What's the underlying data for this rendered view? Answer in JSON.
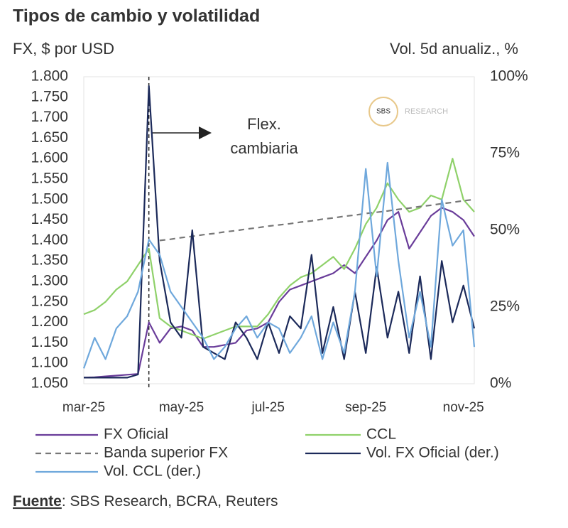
{
  "chart_data": {
    "type": "line",
    "title": "Tipos de cambio y volatilidad",
    "y_label": "FX, $ por USD",
    "y2_label": "Vol. 5d anualiz., %",
    "categories": [
      "mar-25",
      null,
      null,
      null,
      null,
      null,
      null,
      null,
      null,
      "may-25",
      null,
      null,
      null,
      null,
      null,
      null,
      null,
      "jul-25",
      null,
      null,
      null,
      null,
      null,
      null,
      null,
      null,
      "sep-25",
      null,
      null,
      null,
      null,
      null,
      null,
      null,
      null,
      "nov-25",
      null
    ],
    "ylim": [
      1050,
      1800
    ],
    "yticks": [
      {
        "value": 1050,
        "label": "1.050"
      },
      {
        "value": 1100,
        "label": "1.100"
      },
      {
        "value": 1150,
        "label": "1.150"
      },
      {
        "value": 1200,
        "label": "1.200"
      },
      {
        "value": 1250,
        "label": "1.250"
      },
      {
        "value": 1300,
        "label": "1.300"
      },
      {
        "value": 1350,
        "label": "1.350"
      },
      {
        "value": 1400,
        "label": "1.400"
      },
      {
        "value": 1450,
        "label": "1.450"
      },
      {
        "value": 1500,
        "label": "1.500"
      },
      {
        "value": 1550,
        "label": "1.550"
      },
      {
        "value": 1600,
        "label": "1.600"
      },
      {
        "value": 1650,
        "label": "1.650"
      },
      {
        "value": 1700,
        "label": "1.700"
      },
      {
        "value": 1750,
        "label": "1.750"
      },
      {
        "value": 1800,
        "label": "1.800"
      }
    ],
    "y2lim": [
      0,
      100
    ],
    "y2ticks": [
      {
        "value": 0,
        "label": "0%"
      },
      {
        "value": 25,
        "label": "25%"
      },
      {
        "value": 50,
        "label": "50%"
      },
      {
        "value": 75,
        "label": "75%"
      },
      {
        "value": 100,
        "label": "100%"
      }
    ],
    "series": [
      {
        "name": "FX Oficial",
        "color": "#6a3d9a",
        "values": [
          1065,
          1066,
          1068,
          1070,
          1072,
          1074,
          1200,
          1150,
          1185,
          1190,
          1180,
          1140,
          1140,
          1145,
          1150,
          1180,
          1185,
          1200,
          1250,
          1280,
          1290,
          1300,
          1310,
          1320,
          1340,
          1320,
          1360,
          1400,
          1450,
          1470,
          1380,
          1420,
          1460,
          1480,
          1470,
          1450,
          1410
        ]
      },
      {
        "name": "CCL",
        "color": "#8fd16a",
        "values": [
          1220,
          1230,
          1250,
          1280,
          1300,
          1340,
          1380,
          1210,
          1190,
          1180,
          1170,
          1160,
          1170,
          1180,
          1190,
          1190,
          1190,
          1220,
          1260,
          1290,
          1310,
          1320,
          1340,
          1360,
          1330,
          1380,
          1440,
          1480,
          1540,
          1500,
          1470,
          1480,
          1510,
          1500,
          1600,
          1500,
          1470
        ]
      },
      {
        "name": "Banda superior FX",
        "color": "#777777",
        "dashed": true,
        "values": [
          null,
          null,
          null,
          null,
          null,
          null,
          null,
          1400,
          1403,
          1407,
          1410,
          1414,
          1417,
          1421,
          1424,
          1428,
          1431,
          1435,
          1438,
          1441,
          1445,
          1448,
          1452,
          1455,
          1459,
          1462,
          1466,
          1469,
          1472,
          1476,
          1479,
          1483,
          1486,
          1490,
          1493,
          1497,
          1500
        ]
      },
      {
        "name": "Vol. FX Oficial (der.)",
        "color": "#1c2a5a",
        "axis": "y2",
        "values": [
          2,
          2,
          2,
          2,
          2,
          3,
          97,
          40,
          20,
          15,
          50,
          12,
          10,
          8,
          20,
          15,
          8,
          20,
          10,
          22,
          18,
          42,
          10,
          25,
          8,
          30,
          10,
          38,
          15,
          30,
          10,
          35,
          8,
          40,
          20,
          32,
          18
        ]
      },
      {
        "name": "Vol. CCL (der.)",
        "color": "#6fa8dc",
        "axis": "y2",
        "values": [
          5,
          15,
          8,
          18,
          22,
          30,
          47,
          42,
          30,
          25,
          20,
          15,
          8,
          12,
          18,
          22,
          15,
          20,
          18,
          10,
          15,
          22,
          8,
          20,
          10,
          30,
          70,
          35,
          72,
          40,
          15,
          30,
          12,
          60,
          45,
          50,
          12
        ]
      }
    ],
    "annotation": [
      "Flex.",
      "cambiaria"
    ],
    "logo": [
      "SBS",
      "RESEARCH"
    ],
    "source": {
      "label": "Fuente",
      "text": ": SBS Research, BCRA, Reuters"
    }
  }
}
